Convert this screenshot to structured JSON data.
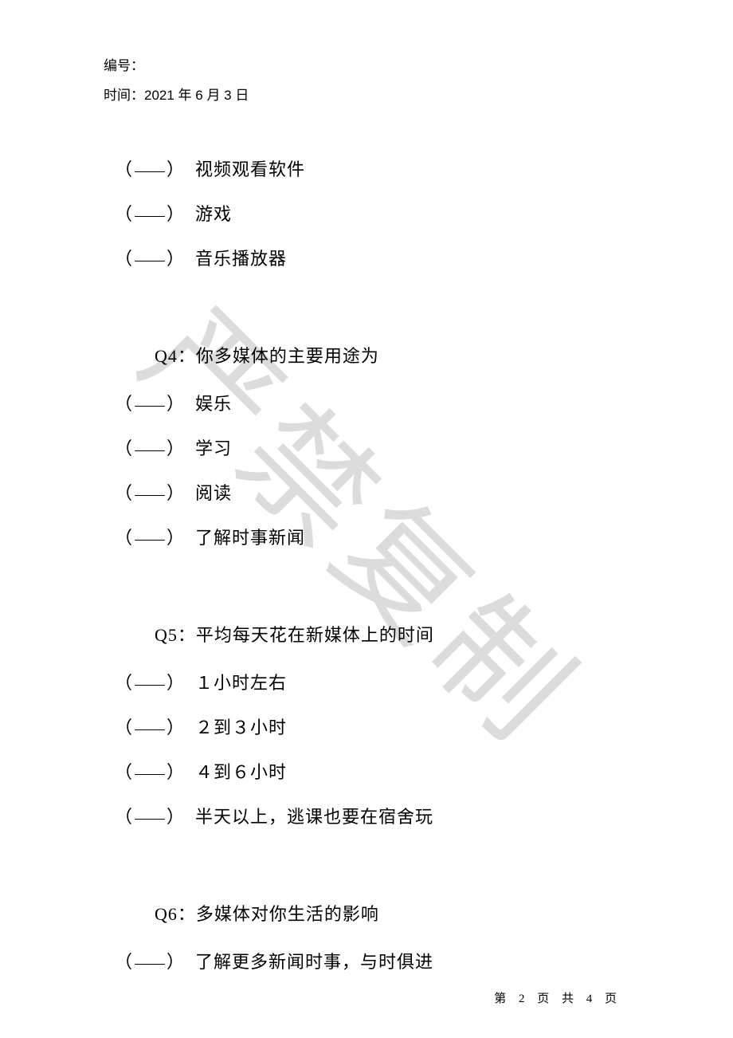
{
  "header": {
    "id_label": "编号：",
    "date_label": "时间：2021 年 6 月 3 日"
  },
  "watermark": "严禁复制",
  "pre_options": [
    "视频观看软件",
    "游戏",
    "音乐播放器"
  ],
  "questions": [
    {
      "title": "Q4：你多媒体的主要用途为",
      "options": [
        "娱乐",
        "学习",
        "阅读",
        "了解时事新闻"
      ]
    },
    {
      "title": "Q5：平均每天花在新媒体上的时间",
      "options": [
        "１小时左右",
        "２到３小时",
        "４到６小时",
        "半天以上，逃课也要在宿舍玩"
      ]
    },
    {
      "title": "Q6：多媒体对你生活的影响",
      "options": [
        "了解更多新闻时事，与时俱进"
      ]
    }
  ],
  "footer": {
    "page_label": "第 2 页 共 4 页"
  }
}
